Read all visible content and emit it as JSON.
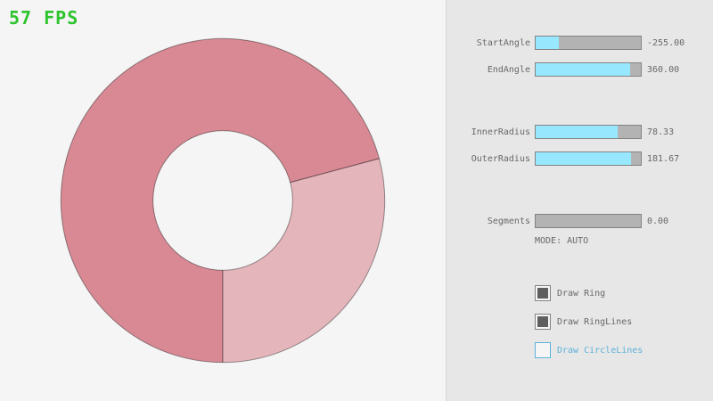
{
  "fps_label": "57 FPS",
  "panel": {
    "sliders": [
      {
        "label": "StartAngle",
        "value": "-255.00",
        "fill_pct": 21.67
      },
      {
        "label": "EndAngle",
        "value": "360.00",
        "fill_pct": 90.0
      },
      {
        "label": "InnerRadius",
        "value": "78.33",
        "fill_pct": 78.33
      },
      {
        "label": "OuterRadius",
        "value": "181.67",
        "fill_pct": 90.83
      },
      {
        "label": "Segments",
        "value": "0.00",
        "fill_pct": 0.0
      }
    ],
    "mode_label": "MODE: AUTO",
    "checkboxes": [
      {
        "label": "Draw Ring",
        "checked": true
      },
      {
        "label": "Draw RingLines",
        "checked": true
      },
      {
        "label": "Draw CircleLines",
        "checked": false
      }
    ]
  },
  "ring": {
    "start_angle": -255.0,
    "end_angle": 360.0,
    "inner_radius": 78.33,
    "outer_radius": 181.67,
    "single_pass_color": "#e5b5bc",
    "double_pass_color": "#d98994",
    "outline_color": "#00000066"
  },
  "colors": {
    "canvas_bg": "#f5f5f5",
    "panel_bg": "#e7e7e7",
    "divider": "#d8d8d8",
    "fps_green": "#2dc42d",
    "text_gray": "#686868",
    "control_border": "#838383",
    "track_gray": "#b3b3b3",
    "slider_fill": "#97e8ff",
    "check_dark": "#5f5f5f",
    "accent_blue": "#5bb2d9"
  }
}
